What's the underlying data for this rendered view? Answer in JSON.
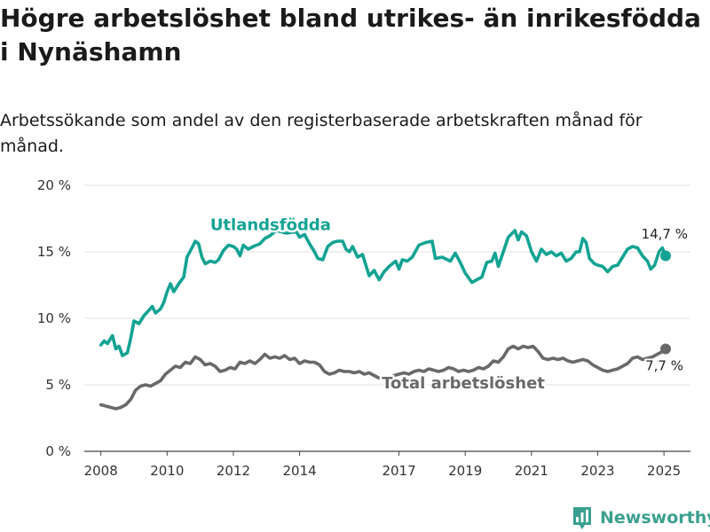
{
  "header": {
    "title": "Högre arbetslöshet bland utrikes- än inrikesfödda i Nynäshamn",
    "subtitle": "Arbetssökande som andel av den registerbaserade arbetskraften månad för månad."
  },
  "brand": {
    "name": "Newsworthy",
    "icon": "bar-chart-logo-icon",
    "color": "#3aa08f"
  },
  "chart_data": {
    "type": "line",
    "title": "Högre arbetslöshet bland utrikes- än inrikesfödda i Nynäshamn",
    "subtitle": "Arbetssökande som andel av den registerbaserade arbetskraften månad för månad.",
    "x_ticks": [
      "2008",
      "2010",
      "2012",
      "2014",
      "2017",
      "2019",
      "2021",
      "2023",
      "2025"
    ],
    "y_ticks": [
      "0 %",
      "5 %",
      "10 %",
      "15 %",
      "20 %"
    ],
    "xlim": [
      2007.5,
      2025.8
    ],
    "ylim": [
      0,
      20
    ],
    "grid": "horizontal",
    "legend": "inline labels",
    "series": [
      {
        "name": "Utlandsfödda",
        "color": "#13a393",
        "end_label": "14,7 %",
        "points": [
          [
            2008.0,
            8.0
          ],
          [
            2008.1,
            8.3
          ],
          [
            2008.2,
            8.1
          ],
          [
            2008.35,
            8.7
          ],
          [
            2008.45,
            7.7
          ],
          [
            2008.55,
            7.9
          ],
          [
            2008.65,
            7.2
          ],
          [
            2008.8,
            7.4
          ],
          [
            2008.9,
            8.5
          ],
          [
            2009.0,
            9.8
          ],
          [
            2009.15,
            9.6
          ],
          [
            2009.3,
            10.2
          ],
          [
            2009.45,
            10.6
          ],
          [
            2009.55,
            10.9
          ],
          [
            2009.65,
            10.4
          ],
          [
            2009.8,
            10.7
          ],
          [
            2009.9,
            11.2
          ],
          [
            2010.0,
            12.0
          ],
          [
            2010.1,
            12.6
          ],
          [
            2010.2,
            12.0
          ],
          [
            2010.35,
            12.6
          ],
          [
            2010.5,
            13.1
          ],
          [
            2010.6,
            14.6
          ],
          [
            2010.75,
            15.3
          ],
          [
            2010.85,
            15.8
          ],
          [
            2010.95,
            15.6
          ],
          [
            2011.05,
            14.6
          ],
          [
            2011.15,
            14.1
          ],
          [
            2011.3,
            14.3
          ],
          [
            2011.45,
            14.2
          ],
          [
            2011.55,
            14.4
          ],
          [
            2011.7,
            15.1
          ],
          [
            2011.85,
            15.5
          ],
          [
            2012.0,
            15.4
          ],
          [
            2012.1,
            15.2
          ],
          [
            2012.2,
            14.7
          ],
          [
            2012.3,
            15.5
          ],
          [
            2012.45,
            15.2
          ],
          [
            2012.6,
            15.4
          ],
          [
            2012.8,
            15.6
          ],
          [
            2012.95,
            16.0
          ],
          [
            2013.1,
            16.2
          ],
          [
            2013.3,
            16.6
          ],
          [
            2013.6,
            16.4
          ],
          [
            2013.9,
            16.5
          ],
          [
            2014.0,
            16.1
          ],
          [
            2014.15,
            16.3
          ],
          [
            2014.3,
            15.6
          ],
          [
            2014.45,
            15.0
          ],
          [
            2014.55,
            14.5
          ],
          [
            2014.7,
            14.4
          ],
          [
            2014.85,
            15.4
          ],
          [
            2015.0,
            15.7
          ],
          [
            2015.15,
            15.8
          ],
          [
            2015.3,
            15.8
          ],
          [
            2015.4,
            15.2
          ],
          [
            2015.5,
            15.0
          ],
          [
            2015.6,
            15.4
          ],
          [
            2015.75,
            14.6
          ],
          [
            2015.9,
            14.8
          ],
          [
            2016.0,
            14.0
          ],
          [
            2016.1,
            13.2
          ],
          [
            2016.25,
            13.6
          ],
          [
            2016.4,
            12.9
          ],
          [
            2016.55,
            13.5
          ],
          [
            2016.7,
            13.9
          ],
          [
            2016.9,
            14.3
          ],
          [
            2017.0,
            13.7
          ],
          [
            2017.1,
            14.4
          ],
          [
            2017.25,
            14.3
          ],
          [
            2017.4,
            14.6
          ],
          [
            2017.6,
            15.5
          ],
          [
            2017.8,
            15.7
          ],
          [
            2018.0,
            15.8
          ],
          [
            2018.1,
            14.5
          ],
          [
            2018.3,
            14.6
          ],
          [
            2018.55,
            14.3
          ],
          [
            2018.7,
            14.9
          ],
          [
            2018.85,
            14.2
          ],
          [
            2019.0,
            13.4
          ],
          [
            2019.2,
            12.7
          ],
          [
            2019.35,
            12.9
          ],
          [
            2019.5,
            13.1
          ],
          [
            2019.65,
            14.2
          ],
          [
            2019.8,
            14.3
          ],
          [
            2019.9,
            14.9
          ],
          [
            2020.0,
            13.9
          ],
          [
            2020.15,
            15.0
          ],
          [
            2020.3,
            16.1
          ],
          [
            2020.5,
            16.6
          ],
          [
            2020.6,
            15.9
          ],
          [
            2020.7,
            16.5
          ],
          [
            2020.85,
            16.2
          ],
          [
            2021.0,
            15.0
          ],
          [
            2021.15,
            14.3
          ],
          [
            2021.3,
            15.2
          ],
          [
            2021.45,
            14.8
          ],
          [
            2021.6,
            15.0
          ],
          [
            2021.75,
            14.7
          ],
          [
            2021.9,
            14.9
          ],
          [
            2022.05,
            14.3
          ],
          [
            2022.2,
            14.5
          ],
          [
            2022.35,
            15.0
          ],
          [
            2022.45,
            15.0
          ],
          [
            2022.55,
            16.0
          ],
          [
            2022.65,
            15.7
          ],
          [
            2022.75,
            14.5
          ],
          [
            2022.9,
            14.1
          ],
          [
            2023.0,
            14.0
          ],
          [
            2023.15,
            13.9
          ],
          [
            2023.3,
            13.5
          ],
          [
            2023.45,
            13.9
          ],
          [
            2023.6,
            14.0
          ],
          [
            2023.75,
            14.6
          ],
          [
            2023.9,
            15.2
          ],
          [
            2024.05,
            15.4
          ],
          [
            2024.2,
            15.3
          ],
          [
            2024.35,
            14.7
          ],
          [
            2024.5,
            14.3
          ],
          [
            2024.6,
            13.7
          ],
          [
            2024.72,
            14.0
          ],
          [
            2024.85,
            15.0
          ],
          [
            2024.95,
            15.3
          ],
          [
            2025.05,
            14.7
          ]
        ]
      },
      {
        "name": "Total arbetslöshet",
        "color": "#696969",
        "end_label": "7,7 %",
        "points": [
          [
            2008.0,
            3.5
          ],
          [
            2008.15,
            3.4
          ],
          [
            2008.3,
            3.3
          ],
          [
            2008.45,
            3.2
          ],
          [
            2008.6,
            3.3
          ],
          [
            2008.75,
            3.5
          ],
          [
            2008.9,
            3.9
          ],
          [
            2009.05,
            4.6
          ],
          [
            2009.2,
            4.9
          ],
          [
            2009.35,
            5.0
          ],
          [
            2009.5,
            4.9
          ],
          [
            2009.65,
            5.1
          ],
          [
            2009.8,
            5.3
          ],
          [
            2009.95,
            5.8
          ],
          [
            2010.1,
            6.1
          ],
          [
            2010.25,
            6.4
          ],
          [
            2010.4,
            6.3
          ],
          [
            2010.55,
            6.7
          ],
          [
            2010.7,
            6.6
          ],
          [
            2010.85,
            7.1
          ],
          [
            2011.0,
            6.9
          ],
          [
            2011.15,
            6.5
          ],
          [
            2011.3,
            6.6
          ],
          [
            2011.45,
            6.4
          ],
          [
            2011.6,
            6.0
          ],
          [
            2011.75,
            6.1
          ],
          [
            2011.9,
            6.3
          ],
          [
            2012.05,
            6.2
          ],
          [
            2012.2,
            6.7
          ],
          [
            2012.35,
            6.6
          ],
          [
            2012.5,
            6.8
          ],
          [
            2012.65,
            6.6
          ],
          [
            2012.8,
            6.9
          ],
          [
            2012.95,
            7.3
          ],
          [
            2013.1,
            7.0
          ],
          [
            2013.25,
            7.1
          ],
          [
            2013.4,
            7.0
          ],
          [
            2013.55,
            7.2
          ],
          [
            2013.7,
            6.9
          ],
          [
            2013.85,
            7.0
          ],
          [
            2014.0,
            6.6
          ],
          [
            2014.15,
            6.8
          ],
          [
            2014.3,
            6.7
          ],
          [
            2014.45,
            6.7
          ],
          [
            2014.6,
            6.5
          ],
          [
            2014.75,
            6.0
          ],
          [
            2014.9,
            5.8
          ],
          [
            2015.05,
            5.9
          ],
          [
            2015.2,
            6.1
          ],
          [
            2015.35,
            6.0
          ],
          [
            2015.5,
            6.0
          ],
          [
            2015.65,
            5.9
          ],
          [
            2015.8,
            6.0
          ],
          [
            2015.95,
            5.8
          ],
          [
            2016.1,
            5.9
          ],
          [
            2016.25,
            5.7
          ],
          [
            2016.4,
            5.5
          ],
          [
            2016.55,
            5.6
          ],
          [
            2016.7,
            5.6
          ],
          [
            2016.85,
            5.7
          ],
          [
            2017.0,
            5.8
          ],
          [
            2017.15,
            5.9
          ],
          [
            2017.3,
            5.8
          ],
          [
            2017.45,
            6.0
          ],
          [
            2017.6,
            6.1
          ],
          [
            2017.75,
            6.0
          ],
          [
            2017.9,
            6.2
          ],
          [
            2018.05,
            6.1
          ],
          [
            2018.2,
            6.0
          ],
          [
            2018.35,
            6.1
          ],
          [
            2018.5,
            6.3
          ],
          [
            2018.65,
            6.2
          ],
          [
            2018.8,
            6.0
          ],
          [
            2018.95,
            6.1
          ],
          [
            2019.1,
            6.0
          ],
          [
            2019.25,
            6.1
          ],
          [
            2019.4,
            6.3
          ],
          [
            2019.55,
            6.2
          ],
          [
            2019.7,
            6.4
          ],
          [
            2019.85,
            6.8
          ],
          [
            2020.0,
            6.7
          ],
          [
            2020.15,
            7.1
          ],
          [
            2020.3,
            7.7
          ],
          [
            2020.45,
            7.9
          ],
          [
            2020.6,
            7.7
          ],
          [
            2020.75,
            7.9
          ],
          [
            2020.9,
            7.8
          ],
          [
            2021.05,
            7.9
          ],
          [
            2021.2,
            7.5
          ],
          [
            2021.35,
            7.0
          ],
          [
            2021.5,
            6.9
          ],
          [
            2021.65,
            7.0
          ],
          [
            2021.8,
            6.9
          ],
          [
            2021.95,
            7.0
          ],
          [
            2022.1,
            6.8
          ],
          [
            2022.25,
            6.7
          ],
          [
            2022.4,
            6.8
          ],
          [
            2022.55,
            6.9
          ],
          [
            2022.7,
            6.8
          ],
          [
            2022.85,
            6.5
          ],
          [
            2023.0,
            6.3
          ],
          [
            2023.15,
            6.1
          ],
          [
            2023.3,
            6.0
          ],
          [
            2023.45,
            6.1
          ],
          [
            2023.6,
            6.2
          ],
          [
            2023.75,
            6.4
          ],
          [
            2023.9,
            6.6
          ],
          [
            2024.05,
            7.0
          ],
          [
            2024.2,
            7.1
          ],
          [
            2024.35,
            6.9
          ],
          [
            2024.5,
            7.0
          ],
          [
            2024.65,
            7.1
          ],
          [
            2024.8,
            7.3
          ],
          [
            2024.95,
            7.5
          ],
          [
            2025.05,
            7.7
          ]
        ]
      }
    ]
  }
}
